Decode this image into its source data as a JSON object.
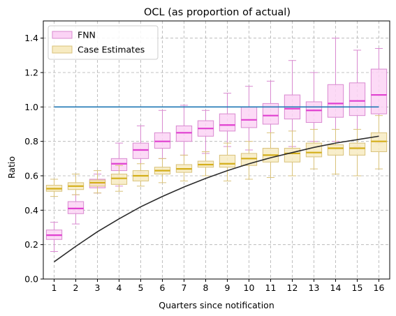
{
  "chart_data": {
    "type": "box",
    "title": "OCL (as proportion of actual)",
    "xlabel": "Quarters since notification",
    "ylabel": "Ratio",
    "categories": [
      "1",
      "2",
      "3",
      "4",
      "5",
      "6",
      "7",
      "8",
      "9",
      "10",
      "11",
      "12",
      "13",
      "14",
      "15",
      "16"
    ],
    "ylim": [
      0,
      1.5
    ],
    "yticks": [
      "0.0",
      "0.2",
      "0.4",
      "0.6",
      "0.8",
      "1.0",
      "1.2",
      "1.4"
    ],
    "grid": true,
    "legend_position": "top-left",
    "series": [
      {
        "name": "FNN",
        "fill": "#fbd3f5",
        "stroke": "#d98ad0",
        "median_color": "#e040d0",
        "boxes": [
          {
            "whislo": 0.16,
            "q1": 0.23,
            "med": 0.255,
            "q3": 0.285,
            "whishi": 0.33
          },
          {
            "whislo": 0.32,
            "q1": 0.38,
            "med": 0.41,
            "q3": 0.45,
            "whishi": 0.49
          },
          {
            "whislo": 0.5,
            "q1": 0.53,
            "med": 0.555,
            "q3": 0.58,
            "whishi": 0.61
          },
          {
            "whislo": 0.54,
            "q1": 0.63,
            "med": 0.67,
            "q3": 0.7,
            "whishi": 0.79
          },
          {
            "whislo": 0.62,
            "q1": 0.7,
            "med": 0.75,
            "q3": 0.79,
            "whishi": 0.89
          },
          {
            "whislo": 0.7,
            "q1": 0.76,
            "med": 0.8,
            "q3": 0.85,
            "whishi": 0.98
          },
          {
            "whislo": 0.72,
            "q1": 0.8,
            "med": 0.85,
            "q3": 0.89,
            "whishi": 1.01
          },
          {
            "whislo": 0.73,
            "q1": 0.83,
            "med": 0.875,
            "q3": 0.92,
            "whishi": 0.98
          },
          {
            "whislo": 0.77,
            "q1": 0.86,
            "med": 0.895,
            "q3": 0.96,
            "whishi": 1.08
          },
          {
            "whislo": 0.75,
            "q1": 0.88,
            "med": 0.925,
            "q3": 1.0,
            "whishi": 1.12
          },
          {
            "whislo": 0.76,
            "q1": 0.9,
            "med": 0.95,
            "q3": 1.02,
            "whishi": 1.15
          },
          {
            "whislo": 0.77,
            "q1": 0.93,
            "med": 0.99,
            "q3": 1.07,
            "whishi": 1.27
          },
          {
            "whislo": 0.8,
            "q1": 0.91,
            "med": 0.98,
            "q3": 1.03,
            "whishi": 1.2
          },
          {
            "whislo": 0.8,
            "q1": 0.94,
            "med": 1.02,
            "q3": 1.13,
            "whishi": 1.4
          },
          {
            "whislo": 0.77,
            "q1": 0.95,
            "med": 1.035,
            "q3": 1.14,
            "whishi": 1.33
          },
          {
            "whislo": 0.79,
            "q1": 0.96,
            "med": 1.07,
            "q3": 1.22,
            "whishi": 1.34
          }
        ]
      },
      {
        "name": "Case Estimates",
        "fill": "#f7ebc2",
        "stroke": "#d9c27a",
        "median_color": "#d4ae1a",
        "boxes": [
          {
            "whislo": 0.48,
            "q1": 0.51,
            "med": 0.525,
            "q3": 0.545,
            "whishi": 0.58
          },
          {
            "whislo": 0.49,
            "q1": 0.52,
            "med": 0.54,
            "q3": 0.56,
            "whishi": 0.61
          },
          {
            "whislo": 0.5,
            "q1": 0.54,
            "med": 0.56,
            "q3": 0.575,
            "whishi": 0.63
          },
          {
            "whislo": 0.51,
            "q1": 0.55,
            "med": 0.585,
            "q3": 0.61,
            "whishi": 0.66
          },
          {
            "whislo": 0.54,
            "q1": 0.57,
            "med": 0.6,
            "q3": 0.63,
            "whishi": 0.67
          },
          {
            "whislo": 0.56,
            "q1": 0.61,
            "med": 0.63,
            "q3": 0.65,
            "whishi": 0.7
          },
          {
            "whislo": 0.57,
            "q1": 0.62,
            "med": 0.64,
            "q3": 0.665,
            "whishi": 0.72
          },
          {
            "whislo": 0.6,
            "q1": 0.65,
            "med": 0.665,
            "q3": 0.685,
            "whishi": 0.74
          },
          {
            "whislo": 0.57,
            "q1": 0.65,
            "med": 0.67,
            "q3": 0.72,
            "whishi": 0.79
          },
          {
            "whislo": 0.58,
            "q1": 0.66,
            "med": 0.7,
            "q3": 0.73,
            "whishi": 0.8
          },
          {
            "whislo": 0.59,
            "q1": 0.68,
            "med": 0.72,
            "q3": 0.76,
            "whishi": 0.85
          },
          {
            "whislo": 0.6,
            "q1": 0.68,
            "med": 0.73,
            "q3": 0.76,
            "whishi": 0.86
          },
          {
            "whislo": 0.64,
            "q1": 0.71,
            "med": 0.735,
            "q3": 0.79,
            "whishi": 0.87
          },
          {
            "whislo": 0.61,
            "q1": 0.72,
            "med": 0.76,
            "q3": 0.78,
            "whishi": 0.87
          },
          {
            "whislo": 0.6,
            "q1": 0.72,
            "med": 0.76,
            "q3": 0.79,
            "whishi": 0.87
          },
          {
            "whislo": 0.64,
            "q1": 0.74,
            "med": 0.8,
            "q3": 0.85,
            "whishi": 0.95
          }
        ]
      }
    ],
    "lines": [
      {
        "color": "#1f77b4",
        "x": [
          1,
          16
        ],
        "y": [
          1.0,
          1.0
        ]
      },
      {
        "color": "#2b2b2b",
        "x": [
          1,
          2,
          3,
          4,
          5,
          6,
          7,
          8,
          9,
          10,
          11,
          12,
          13,
          14,
          15,
          16
        ],
        "y": [
          0.1,
          0.19,
          0.275,
          0.35,
          0.42,
          0.48,
          0.535,
          0.585,
          0.63,
          0.67,
          0.705,
          0.735,
          0.765,
          0.79,
          0.81,
          0.83
        ]
      }
    ]
  }
}
